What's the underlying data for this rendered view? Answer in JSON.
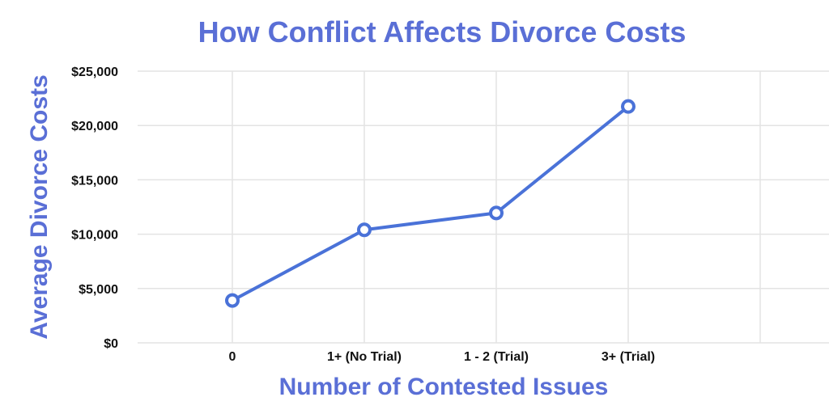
{
  "colors": {
    "accent": "#5a6fd6",
    "series": "#4a72d8",
    "grid": "#e3e3e3",
    "tick_text": "#111111",
    "background": "#ffffff"
  },
  "chart_data": {
    "type": "line",
    "title": "How Conflict Affects Divorce Costs",
    "xlabel": "Number of Contested Issues",
    "ylabel": "Average Divorce Costs",
    "categories": [
      "0",
      "1+ (No Trial)",
      "1 - 2 (Trial)",
      "3+ (Trial)"
    ],
    "y_ticks": [
      "$0",
      "$5,000",
      "$10,000",
      "$15,000",
      "$20,000",
      "$25,000"
    ],
    "ylim": [
      0,
      25000
    ],
    "grid": true,
    "legend": "none",
    "series": [
      {
        "values": [
          3900,
          10400,
          11950,
          21750
        ]
      }
    ]
  }
}
